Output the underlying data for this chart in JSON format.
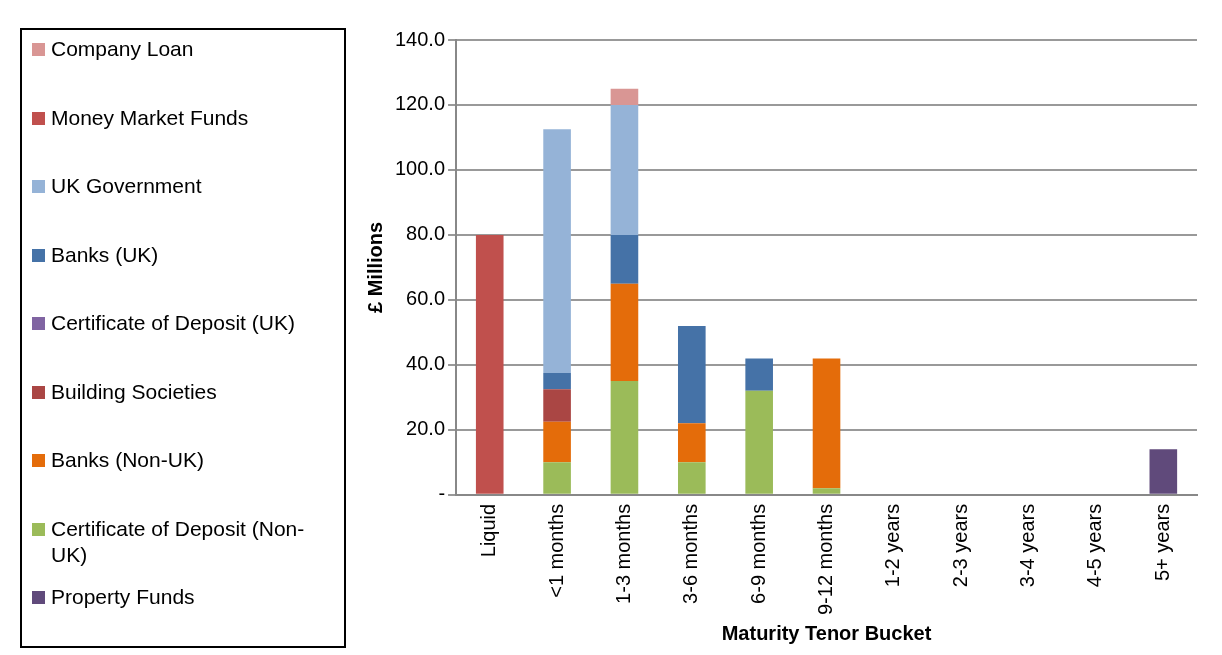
{
  "chart_data": {
    "type": "bar",
    "stacked": true,
    "xlabel": "Maturity Tenor Bucket",
    "ylabel": "£ Millions",
    "categories": [
      "Liquid",
      "<1 months",
      "1-3 months",
      "3-6 months",
      "6-9 months",
      "9-12 months",
      "1-2 years",
      "2-3 years",
      "3-4 years",
      "4-5 years",
      "5+ years"
    ],
    "series": [
      {
        "name": "Property Funds",
        "color": "#604a7b",
        "values": [
          null,
          null,
          null,
          null,
          null,
          null,
          null,
          null,
          null,
          null,
          14
        ]
      },
      {
        "name": "Certificate of Deposit (Non-UK)",
        "color": "#9bbb59",
        "values": [
          null,
          10,
          35,
          10,
          32,
          2,
          null,
          null,
          null,
          null,
          null
        ]
      },
      {
        "name": "Banks (Non-UK)",
        "color": "#e46c0a",
        "values": [
          null,
          12.5,
          30,
          12,
          null,
          40,
          null,
          null,
          null,
          null,
          null
        ]
      },
      {
        "name": "Building Societies",
        "color": "#aa4644",
        "values": [
          null,
          10,
          null,
          null,
          null,
          null,
          null,
          null,
          null,
          null,
          null
        ]
      },
      {
        "name": "Certificate of Deposit (UK)",
        "color": "#8064a2",
        "values": [
          null,
          null,
          null,
          null,
          null,
          null,
          null,
          null,
          null,
          null,
          null
        ]
      },
      {
        "name": "Banks (UK)",
        "color": "#4572a7",
        "values": [
          null,
          5,
          15,
          30,
          10,
          null,
          null,
          null,
          null,
          null,
          null
        ]
      },
      {
        "name": "UK Government",
        "color": "#95b3d7",
        "values": [
          null,
          75,
          40,
          null,
          null,
          null,
          null,
          null,
          null,
          null,
          null
        ]
      },
      {
        "name": "Money Market Funds",
        "color": "#c0504d",
        "values": [
          80,
          null,
          null,
          null,
          null,
          null,
          null,
          null,
          null,
          null,
          null
        ]
      },
      {
        "name": "Company Loan",
        "color": "#d99694",
        "values": [
          null,
          null,
          5,
          null,
          null,
          null,
          null,
          null,
          null,
          null,
          null
        ]
      }
    ],
    "ylim": [
      0,
      140
    ],
    "yticks": [
      {
        "value": 0,
        "label": "-"
      },
      {
        "value": 20,
        "label": "20.0"
      },
      {
        "value": 40,
        "label": "40.0"
      },
      {
        "value": 60,
        "label": "60.0"
      },
      {
        "value": 80,
        "label": "80.0"
      },
      {
        "value": 100,
        "label": "100.0"
      },
      {
        "value": 120,
        "label": "120.0"
      },
      {
        "value": 140,
        "label": "140.0"
      }
    ],
    "grid": "y",
    "legend": "left"
  }
}
